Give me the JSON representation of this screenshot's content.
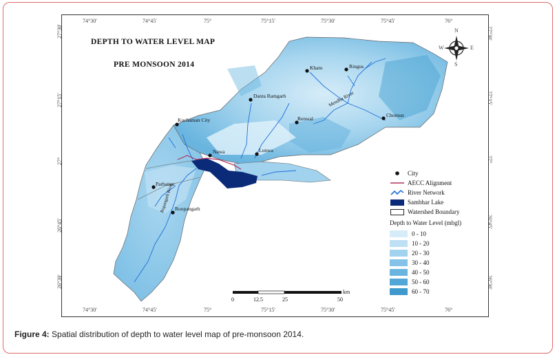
{
  "map": {
    "title_line1": "DEPTH TO WATER LEVEL MAP",
    "title_line2": "PRE MONSOON 2014",
    "top_ticks": [
      "74°30'",
      "74°45'",
      "75°",
      "75°15'",
      "75°30'",
      "75°45'",
      "76°"
    ],
    "bottom_ticks": [
      "74°30'",
      "74°45'",
      "75°",
      "75°15'",
      "75°30'",
      "75°45'",
      "76°"
    ],
    "left_ticks": [
      "27°30'",
      "27°15'",
      "27°",
      "26°45'",
      "26°30'"
    ],
    "right_ticks": [
      "27°30'",
      "27°15'",
      "27°",
      "26°45'",
      "26°30'"
    ],
    "cities": [
      {
        "name": "Khatu"
      },
      {
        "name": "Ringus"
      },
      {
        "name": "Danta Ramgarh"
      },
      {
        "name": "Chomun"
      },
      {
        "name": "Renwal"
      },
      {
        "name": "Kuchaman City"
      },
      {
        "name": "Nawa"
      },
      {
        "name": "Lunwa"
      },
      {
        "name": "Parbatsar"
      },
      {
        "name": "Roopangarh"
      }
    ],
    "river_labels": [
      "Mendha River",
      "Rupangarh River"
    ],
    "compass": {
      "n": "N",
      "s": "S",
      "e": "E",
      "w": "W"
    },
    "scale": {
      "labels": [
        "0",
        "12.5",
        "25",
        "50"
      ],
      "unit": "km"
    },
    "legend": {
      "items": [
        "City",
        "AECC Alignment",
        "River Network",
        "Sambhar Lake",
        "Watershed Boundary"
      ],
      "class_title": "Depth to Water Level (mbgl)",
      "classes": [
        {
          "label": "0 - 10",
          "color": "#d6ecf8"
        },
        {
          "label": "10 - 20",
          "color": "#bde0f4"
        },
        {
          "label": "20 - 30",
          "color": "#a1d2ee"
        },
        {
          "label": "30 - 40",
          "color": "#84c3e7"
        },
        {
          "label": "40 - 50",
          "color": "#6ab5df"
        },
        {
          "label": "50 - 60",
          "color": "#52a7d6"
        },
        {
          "label": "60 - 70",
          "color": "#3f99cc"
        }
      ],
      "symbol_colors": {
        "aecc": "#b03060",
        "river": "#1e6fd8",
        "lake": "#0b2a78"
      }
    }
  },
  "caption": {
    "label": "Figure 4:",
    "text": "Spatial distribution of depth to water level map of pre-monsoon 2014."
  }
}
